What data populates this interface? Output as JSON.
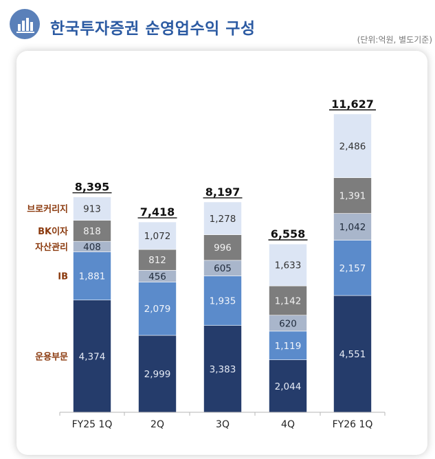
{
  "header": {
    "title": "한국투자증권 순영업수익 구성",
    "unit_note": "(단위:억원, 별도기준)",
    "icon": "bar-chart-icon",
    "icon_color": "#5a80b9",
    "title_color": "#2b5aa2"
  },
  "chart_data": {
    "type": "bar",
    "stacked": true,
    "categories": [
      "FY25 1Q",
      "2Q",
      "3Q",
      "4Q",
      "FY26 1Q"
    ],
    "totals": [
      "8,395",
      "7,418",
      "8,197",
      "6,558",
      "11,627"
    ],
    "series": [
      {
        "name": "운용부문",
        "color": "#253c6b",
        "label_color": "#e6ebf5",
        "values": [
          4374,
          2999,
          3383,
          2044,
          4551
        ],
        "labels": [
          "4,374",
          "2,999",
          "3,383",
          "2,044",
          "4,551"
        ]
      },
      {
        "name": "IB",
        "color": "#5b8bcb",
        "label_color": "#f2f5fb",
        "values": [
          1881,
          2079,
          1935,
          1119,
          2157
        ],
        "labels": [
          "1,881",
          "2,079",
          "1,935",
          "1,119",
          "2,157"
        ]
      },
      {
        "name": "자산관리",
        "color": "#a9b6cb",
        "label_color": "#1f2a3a",
        "values": [
          408,
          456,
          605,
          620,
          1042
        ],
        "labels": [
          "408",
          "456",
          "605",
          "620",
          "1,042"
        ]
      },
      {
        "name": "BK이자",
        "color": "#7d7d7d",
        "label_color": "#f2f2f2",
        "values": [
          818,
          812,
          996,
          1142,
          1391
        ],
        "labels": [
          "818",
          "812",
          "996",
          "1,142",
          "1,391"
        ]
      },
      {
        "name": "브로커리지",
        "color": "#dce5f4",
        "label_color": "#333333",
        "values": [
          913,
          1072,
          1278,
          1633,
          2486
        ],
        "labels": [
          "913",
          "1,072",
          "1,278",
          "1,633",
          "2,486"
        ]
      }
    ],
    "ylim": [
      0,
      12400
    ],
    "grid": false,
    "legend": "left-inline",
    "legend_color": "#8b3a0e"
  }
}
